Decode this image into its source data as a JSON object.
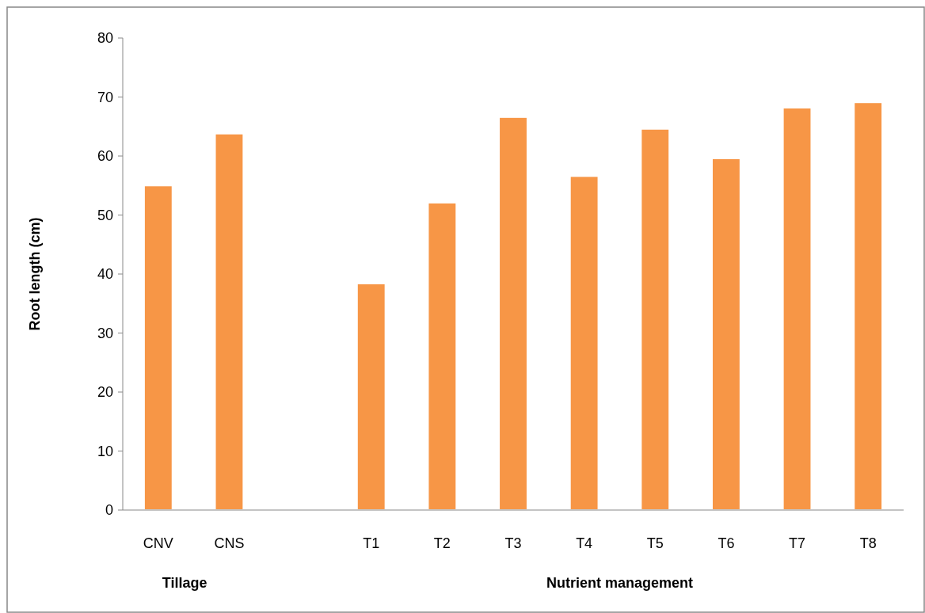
{
  "chart_data": {
    "type": "bar",
    "ylabel": "Root length (cm)",
    "categories": [
      "CNV",
      "CNS",
      null,
      "T1",
      "T2",
      "T3",
      "T4",
      "T5",
      "T6",
      "T7",
      "T8"
    ],
    "values": [
      55.0,
      63.8,
      null,
      38.4,
      52.1,
      66.6,
      56.6,
      64.6,
      59.6,
      68.2,
      69.1
    ],
    "color": "#f79646",
    "ylim": [
      0,
      80
    ],
    "yticks": [
      0,
      10,
      20,
      30,
      40,
      50,
      60,
      70,
      80
    ],
    "grid": false,
    "annotations": [
      "Tillage",
      "Nutrient management"
    ]
  }
}
